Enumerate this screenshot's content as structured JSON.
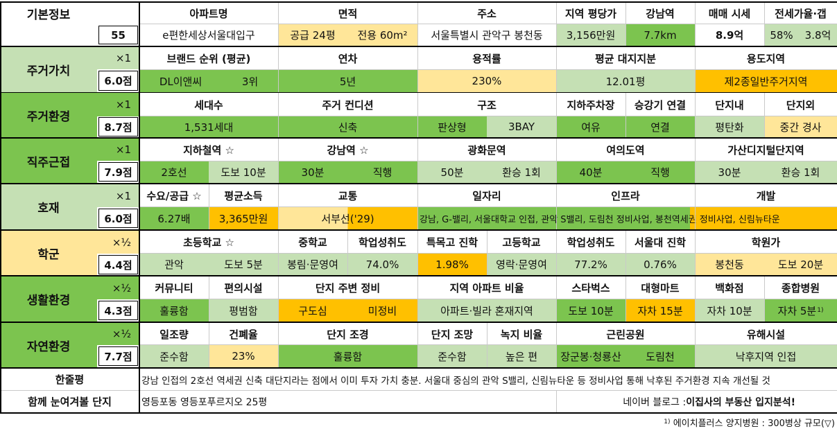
{
  "basic": {
    "label": "기본정보",
    "number": "55",
    "headers": [
      "아파트명",
      "면적",
      "주소",
      "지역 평당가",
      "강남역",
      "매매 시세",
      "전세가율·갭"
    ],
    "apt_name": "e편한세상서울대입구",
    "area_supply": "공급 24평",
    "area_exclusive": "전용 60m²",
    "address": "서울특별시 관악구 봉천동",
    "price_per_pyeong": "3,156만원",
    "gangnam_distance": "7.7km",
    "sale_price": "8.9억",
    "jeonse_rate": "58%",
    "gap": "3.8억"
  },
  "residential_value": {
    "label": "주거가치",
    "multiplier": "×1",
    "score": "6.0점",
    "headers": [
      "브랜드 순위 (평균)",
      "연차",
      "용적률",
      "평균 대지지분",
      "용도지역"
    ],
    "brand": "DL이앤씨",
    "brand_rank": "3위",
    "age": "5년",
    "far": "230%",
    "land_share": "12.01평",
    "zoning": "제2종일반주거지역"
  },
  "residential_env": {
    "label": "주거환경",
    "multiplier": "×1",
    "score": "8.7점",
    "headers": [
      "세대수",
      "주거 컨디션",
      "구조",
      "지하주차장",
      "승강기 연결",
      "단지내",
      "단지외"
    ],
    "households": "1,531세대",
    "condition": "신축",
    "structure_type": "판상형",
    "bay": "3BAY",
    "parking": "여유",
    "elevator": "연결",
    "inside": "평탄화",
    "outside": "중간 경사"
  },
  "commute": {
    "label": "직주근접",
    "multiplier": "×1",
    "score": "7.9점",
    "headers": [
      "지하철역 ☆",
      "강남역 ☆",
      "광화문역",
      "여의도역",
      "가산디지털단지역"
    ],
    "subway_line": "2호선",
    "subway_walk": "도보 10분",
    "gangnam_time": "30분",
    "gangnam_mode": "직행",
    "gwanghwamun_time": "50분",
    "gwanghwamun_mode": "환승 1회",
    "yeouido_time": "40분",
    "yeouido_mode": "직행",
    "gasan_time": "30분",
    "gasan_mode": "환승 1회"
  },
  "development": {
    "label": "호재",
    "multiplier": "×1",
    "score": "6.0점",
    "headers": [
      "수요/공급 ☆",
      "평균소득",
      "교통",
      "일자리",
      "인프라",
      "개발"
    ],
    "supply_ratio": "6.27배",
    "income": "3,365만원",
    "transport": "서부선('29)",
    "summary": "강남, G-밸리, 서울대학교 인접, 관악 S밸리, 도림천 정비사업, 봉천역세권 정비사업, 신림뉴타운"
  },
  "school": {
    "label": "학군",
    "multiplier": "×½",
    "score": "4.4점",
    "headers": [
      "초등학교 ☆",
      "중학교",
      "학업성취도",
      "특목고 진학",
      "고등학교",
      "학업성취도",
      "서울대 진학",
      "학원가"
    ],
    "elementary": "관악",
    "elementary_walk": "도보 5분",
    "middle": "봉림·문영여",
    "middle_achievement": "74.0%",
    "special_hs_rate": "1.98%",
    "high": "영락·문영여",
    "high_achievement": "77.2%",
    "snu_rate": "0.76%",
    "academy": "봉천동",
    "academy_walk": "도보 20분"
  },
  "living": {
    "label": "생활환경",
    "multiplier": "×½",
    "score": "4.3점",
    "headers": [
      "커뮤니티",
      "편의시설",
      "단지 주변 정비",
      "지역 아파트 비율",
      "스타벅스",
      "대형마트",
      "백화점",
      "종합병원"
    ],
    "community": "훌륭함",
    "convenience": "평범함",
    "surroundings_1": "구도심",
    "surroundings_2": "미정비",
    "apt_ratio": "아파트·빌라 혼재지역",
    "starbucks": "도보 10분",
    "mart": "자차 15분",
    "department": "자차 10분",
    "hospital": "자차 5분",
    "hospital_note": "1)"
  },
  "nature": {
    "label": "자연환경",
    "multiplier": "×½",
    "score": "7.7점",
    "headers": [
      "일조량",
      "건폐율",
      "단지 조경",
      "단지 조망",
      "녹지 비율",
      "근린공원",
      "유해시설"
    ],
    "sunlight": "준수함",
    "bcr": "23%",
    "landscape": "훌륭함",
    "view": "준수함",
    "green_ratio": "높은 편",
    "park_1": "장군봉·청룡산",
    "park_2": "도림천",
    "hazard": "낙후지역 인접"
  },
  "review": {
    "label": "한줄평",
    "text": "강남 인접의 2호선 역세권 신축 대단지라는 점에서 이미 투자 가치 충분. 서울대 중심의 관악 S밸리, 신림뉴타운 등 정비사업 통해 낙후된 주거환경 지속 개선될 것"
  },
  "compare": {
    "label": "함께 눈여겨볼 단지",
    "text": "영등포동 영등포푸르지오 25평",
    "blog_prefix": "네이버 블로그 : ",
    "blog_name": "이집사의 부동산 입지분석!"
  },
  "footnote": "에이치플러스 양지병원 : 300병상 규모(▽)",
  "footnote_mark": "1)",
  "colors": {
    "green": "#7cc44f",
    "light_green": "#c5e0b4",
    "light_yellow": "#ffe699",
    "orange": "#ffc000"
  }
}
